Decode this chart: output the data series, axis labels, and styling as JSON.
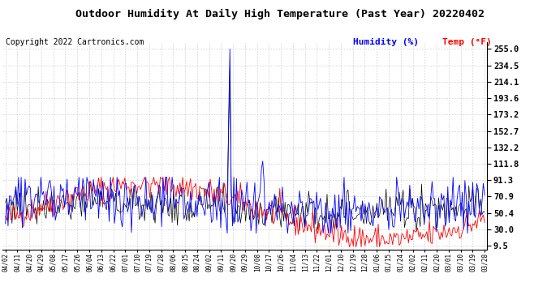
{
  "title": "Outdoor Humidity At Daily High Temperature (Past Year) 20220402",
  "copyright": "Copyright 2022 Cartronics.com",
  "legend_humidity": "Humidity (%)",
  "legend_temp": "Temp (°F)",
  "humidity_color": "blue",
  "temp_color": "red",
  "black_color": "black",
  "background_color": "white",
  "grid_color": "#bbbbbb",
  "yticks": [
    9.5,
    30.0,
    50.4,
    70.9,
    91.3,
    111.8,
    132.2,
    152.7,
    173.2,
    193.6,
    214.1,
    234.5,
    255.0
  ],
  "ymin": 5,
  "ymax": 263,
  "n_points": 366,
  "x_labels": [
    "04/02",
    "04/11",
    "04/20",
    "04/29",
    "05/08",
    "05/17",
    "05/26",
    "06/04",
    "06/13",
    "06/22",
    "07/01",
    "07/10",
    "07/19",
    "07/28",
    "08/06",
    "08/15",
    "08/24",
    "09/02",
    "09/11",
    "09/20",
    "09/29",
    "10/08",
    "10/17",
    "10/26",
    "11/04",
    "11/13",
    "11/22",
    "12/01",
    "12/10",
    "12/19",
    "12/28",
    "01/06",
    "01/15",
    "01/24",
    "02/02",
    "02/11",
    "02/20",
    "03/01",
    "03/10",
    "03/19",
    "03/28"
  ],
  "spike1_day": 171,
  "spike2_day": 196
}
